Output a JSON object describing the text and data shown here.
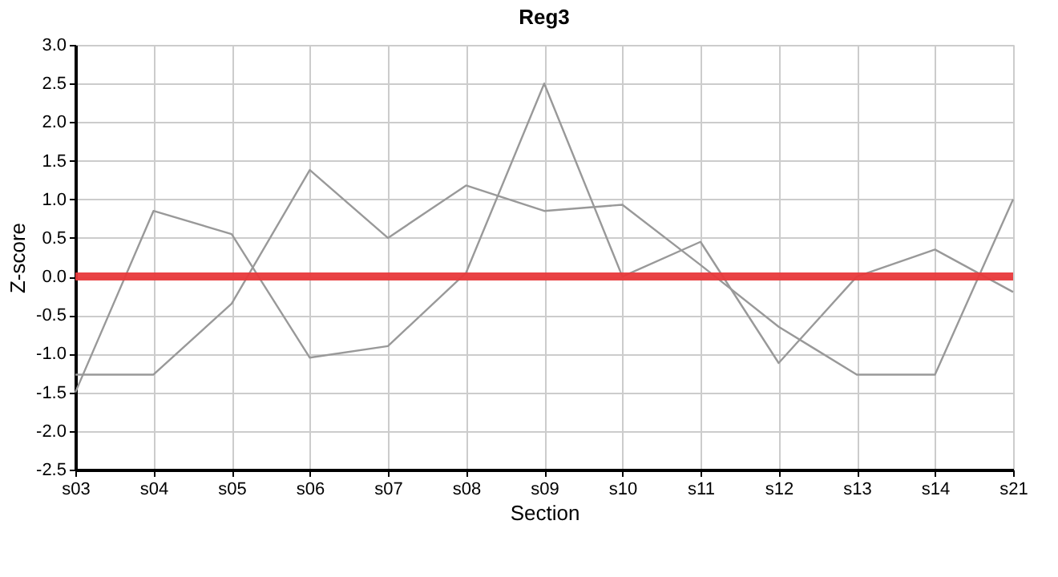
{
  "chart_data": {
    "type": "line",
    "title": "Reg3",
    "xlabel": "Section",
    "ylabel": "Z-score",
    "categories": [
      "s03",
      "s04",
      "s05",
      "s06",
      "s07",
      "s08",
      "s09",
      "s10",
      "s11",
      "s12",
      "s13",
      "s14",
      "s21"
    ],
    "series": [
      {
        "color": "#999999",
        "values": [
          -1.5,
          0.85,
          0.55,
          -1.05,
          -0.9,
          0.05,
          2.5,
          0.0,
          0.45,
          -1.12,
          0.0,
          0.35,
          -0.2
        ]
      },
      {
        "color": "#999999",
        "values": [
          -1.27,
          -1.27,
          -0.35,
          1.38,
          0.5,
          1.18,
          0.85,
          0.93,
          0.15,
          -0.65,
          -1.27,
          -1.27,
          1.0
        ]
      }
    ],
    "ylim": [
      -2.5,
      3.0
    ],
    "yticks": [
      {
        "value": -2.5,
        "label": "-2.5"
      },
      {
        "value": -2.0,
        "label": "-2.0"
      },
      {
        "value": -1.5,
        "label": "-1.5"
      },
      {
        "value": -1.0,
        "label": "-1.0"
      },
      {
        "value": -0.5,
        "label": "-0.5"
      },
      {
        "value": 0.0,
        "label": "0.0"
      },
      {
        "value": 0.5,
        "label": "0.5"
      },
      {
        "value": 1.0,
        "label": "1.0"
      },
      {
        "value": 1.5,
        "label": "1.5"
      },
      {
        "value": 2.0,
        "label": "2.0"
      },
      {
        "value": 2.5,
        "label": "2.5"
      },
      {
        "value": 3.0,
        "label": "3.0"
      }
    ],
    "ref_lines": [
      {
        "axis": "y",
        "value": 0.0,
        "color": "#e8393b",
        "line_style": "solid"
      }
    ],
    "grid": true,
    "marker": "none",
    "line_style": "solid"
  }
}
